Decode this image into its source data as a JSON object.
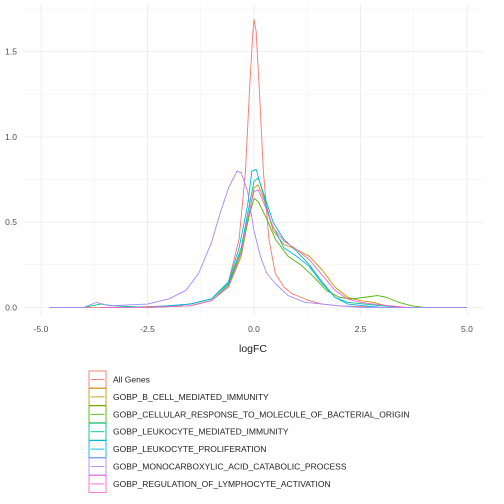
{
  "chart_data": {
    "type": "line",
    "title": "",
    "xlabel": "logFC",
    "ylabel": "",
    "xlim": [
      -5.4,
      5.4
    ],
    "ylim": [
      -0.05,
      1.78
    ],
    "x_ticks": [
      -5.0,
      -2.5,
      0.0,
      2.5,
      5.0
    ],
    "x_tick_labels": [
      "-5.0",
      "-2.5",
      "0.0",
      "2.5",
      "5.0"
    ],
    "y_ticks": [
      0.0,
      0.5,
      1.0,
      1.5
    ],
    "y_tick_labels": [
      "0.0",
      "0.5",
      "1.0",
      "1.5"
    ],
    "grid": true,
    "legend_position": "bottom",
    "series": [
      {
        "name": "All Genes",
        "color": "#F8766D",
        "points": [
          [
            -4.8,
            0.0
          ],
          [
            -3.0,
            0.0
          ],
          [
            -2.0,
            0.01
          ],
          [
            -1.5,
            0.02
          ],
          [
            -1.0,
            0.05
          ],
          [
            -0.6,
            0.15
          ],
          [
            -0.35,
            0.4
          ],
          [
            -0.2,
            0.8
          ],
          [
            -0.1,
            1.3
          ],
          [
            -0.03,
            1.6
          ],
          [
            0.0,
            1.69
          ],
          [
            0.05,
            1.62
          ],
          [
            0.12,
            1.3
          ],
          [
            0.22,
            0.8
          ],
          [
            0.35,
            0.4
          ],
          [
            0.5,
            0.2
          ],
          [
            0.7,
            0.12
          ],
          [
            0.9,
            0.08
          ],
          [
            1.1,
            0.06
          ],
          [
            1.3,
            0.04
          ],
          [
            1.6,
            0.02
          ],
          [
            2.0,
            0.01
          ],
          [
            3.0,
            0.0
          ],
          [
            5.0,
            0.0
          ]
        ]
      },
      {
        "name": "GOBP_B_CELL_MEDIATED_IMMUNITY",
        "color": "#C49A00",
        "points": [
          [
            -3.6,
            0.0
          ],
          [
            -2.5,
            0.0
          ],
          [
            -1.5,
            0.01
          ],
          [
            -1.0,
            0.04
          ],
          [
            -0.6,
            0.12
          ],
          [
            -0.3,
            0.3
          ],
          [
            -0.15,
            0.5
          ],
          [
            0.0,
            0.7
          ],
          [
            0.1,
            0.72
          ],
          [
            0.25,
            0.62
          ],
          [
            0.45,
            0.45
          ],
          [
            0.7,
            0.37
          ],
          [
            1.0,
            0.34
          ],
          [
            1.3,
            0.3
          ],
          [
            1.6,
            0.22
          ],
          [
            1.9,
            0.12
          ],
          [
            2.2,
            0.06
          ],
          [
            2.5,
            0.04
          ],
          [
            2.8,
            0.03
          ],
          [
            3.1,
            0.01
          ],
          [
            3.5,
            0.0
          ]
        ]
      },
      {
        "name": "GOBP_CELLULAR_RESPONSE_TO_MOLECULE_OF_BACTERIAL_ORIGIN",
        "color": "#53B400",
        "points": [
          [
            -3.6,
            0.0
          ],
          [
            -2.5,
            0.0
          ],
          [
            -1.5,
            0.01
          ],
          [
            -1.0,
            0.04
          ],
          [
            -0.6,
            0.13
          ],
          [
            -0.3,
            0.33
          ],
          [
            -0.1,
            0.55
          ],
          [
            0.0,
            0.64
          ],
          [
            0.1,
            0.62
          ],
          [
            0.3,
            0.52
          ],
          [
            0.5,
            0.4
          ],
          [
            0.8,
            0.3
          ],
          [
            1.1,
            0.25
          ],
          [
            1.4,
            0.18
          ],
          [
            1.7,
            0.1
          ],
          [
            2.0,
            0.06
          ],
          [
            2.3,
            0.05
          ],
          [
            2.6,
            0.06
          ],
          [
            2.9,
            0.07
          ],
          [
            3.1,
            0.06
          ],
          [
            3.4,
            0.03
          ],
          [
            3.7,
            0.01
          ],
          [
            4.0,
            0.0
          ],
          [
            5.0,
            0.0
          ]
        ]
      },
      {
        "name": "GOBP_LEUKOCYTE_MEDIATED_IMMUNITY",
        "color": "#00C094",
        "points": [
          [
            -4.8,
            0.0
          ],
          [
            -4.0,
            0.0
          ],
          [
            -3.6,
            0.02
          ],
          [
            -3.3,
            0.01
          ],
          [
            -2.5,
            0.0
          ],
          [
            -1.5,
            0.02
          ],
          [
            -1.0,
            0.05
          ],
          [
            -0.6,
            0.14
          ],
          [
            -0.3,
            0.35
          ],
          [
            -0.15,
            0.55
          ],
          [
            0.0,
            0.74
          ],
          [
            0.1,
            0.76
          ],
          [
            0.25,
            0.65
          ],
          [
            0.45,
            0.5
          ],
          [
            0.7,
            0.4
          ],
          [
            1.0,
            0.33
          ],
          [
            1.3,
            0.25
          ],
          [
            1.6,
            0.15
          ],
          [
            1.9,
            0.06
          ],
          [
            2.2,
            0.03
          ],
          [
            2.6,
            0.02
          ],
          [
            3.0,
            0.01
          ],
          [
            3.5,
            0.0
          ],
          [
            5.0,
            0.0
          ]
        ]
      },
      {
        "name": "GOBP_LEUKOCYTE_PROLIFERATION",
        "color": "#00B6EB",
        "points": [
          [
            -3.6,
            0.0
          ],
          [
            -2.5,
            0.0
          ],
          [
            -1.5,
            0.02
          ],
          [
            -1.0,
            0.05
          ],
          [
            -0.6,
            0.15
          ],
          [
            -0.35,
            0.35
          ],
          [
            -0.15,
            0.6
          ],
          [
            -0.05,
            0.8
          ],
          [
            0.05,
            0.81
          ],
          [
            0.2,
            0.68
          ],
          [
            0.4,
            0.5
          ],
          [
            0.7,
            0.35
          ],
          [
            1.0,
            0.3
          ],
          [
            1.3,
            0.24
          ],
          [
            1.6,
            0.14
          ],
          [
            1.9,
            0.06
          ],
          [
            2.2,
            0.02
          ],
          [
            2.6,
            0.01
          ],
          [
            3.0,
            0.0
          ]
        ]
      },
      {
        "name": "GOBP_MONOCARBOXYLIC_ACID_CATABOLIC_PROCESS",
        "color": "#A58AFF",
        "points": [
          [
            -4.8,
            0.0
          ],
          [
            -4.0,
            0.0
          ],
          [
            -3.7,
            0.03
          ],
          [
            -3.4,
            0.01
          ],
          [
            -2.5,
            0.02
          ],
          [
            -2.0,
            0.05
          ],
          [
            -1.6,
            0.1
          ],
          [
            -1.3,
            0.2
          ],
          [
            -1.0,
            0.38
          ],
          [
            -0.8,
            0.55
          ],
          [
            -0.6,
            0.7
          ],
          [
            -0.4,
            0.8
          ],
          [
            -0.3,
            0.79
          ],
          [
            -0.15,
            0.68
          ],
          [
            0.0,
            0.45
          ],
          [
            0.15,
            0.3
          ],
          [
            0.3,
            0.2
          ],
          [
            0.5,
            0.14
          ],
          [
            0.8,
            0.07
          ],
          [
            1.2,
            0.03
          ],
          [
            1.6,
            0.02
          ],
          [
            2.0,
            0.01
          ],
          [
            2.5,
            0.0
          ],
          [
            5.0,
            0.0
          ]
        ]
      },
      {
        "name": "GOBP_REGULATION_OF_LYMPHOCYTE_ACTIVATION",
        "color": "#FB61D7",
        "points": [
          [
            -3.6,
            0.0
          ],
          [
            -2.5,
            0.0
          ],
          [
            -1.5,
            0.01
          ],
          [
            -1.0,
            0.04
          ],
          [
            -0.6,
            0.12
          ],
          [
            -0.3,
            0.32
          ],
          [
            -0.15,
            0.52
          ],
          [
            0.0,
            0.68
          ],
          [
            0.1,
            0.69
          ],
          [
            0.25,
            0.6
          ],
          [
            0.45,
            0.47
          ],
          [
            0.7,
            0.39
          ],
          [
            1.0,
            0.34
          ],
          [
            1.3,
            0.28
          ],
          [
            1.6,
            0.19
          ],
          [
            1.9,
            0.1
          ],
          [
            2.2,
            0.05
          ],
          [
            2.5,
            0.03
          ],
          [
            2.8,
            0.02
          ],
          [
            3.2,
            0.01
          ],
          [
            3.6,
            0.0
          ]
        ]
      }
    ]
  }
}
